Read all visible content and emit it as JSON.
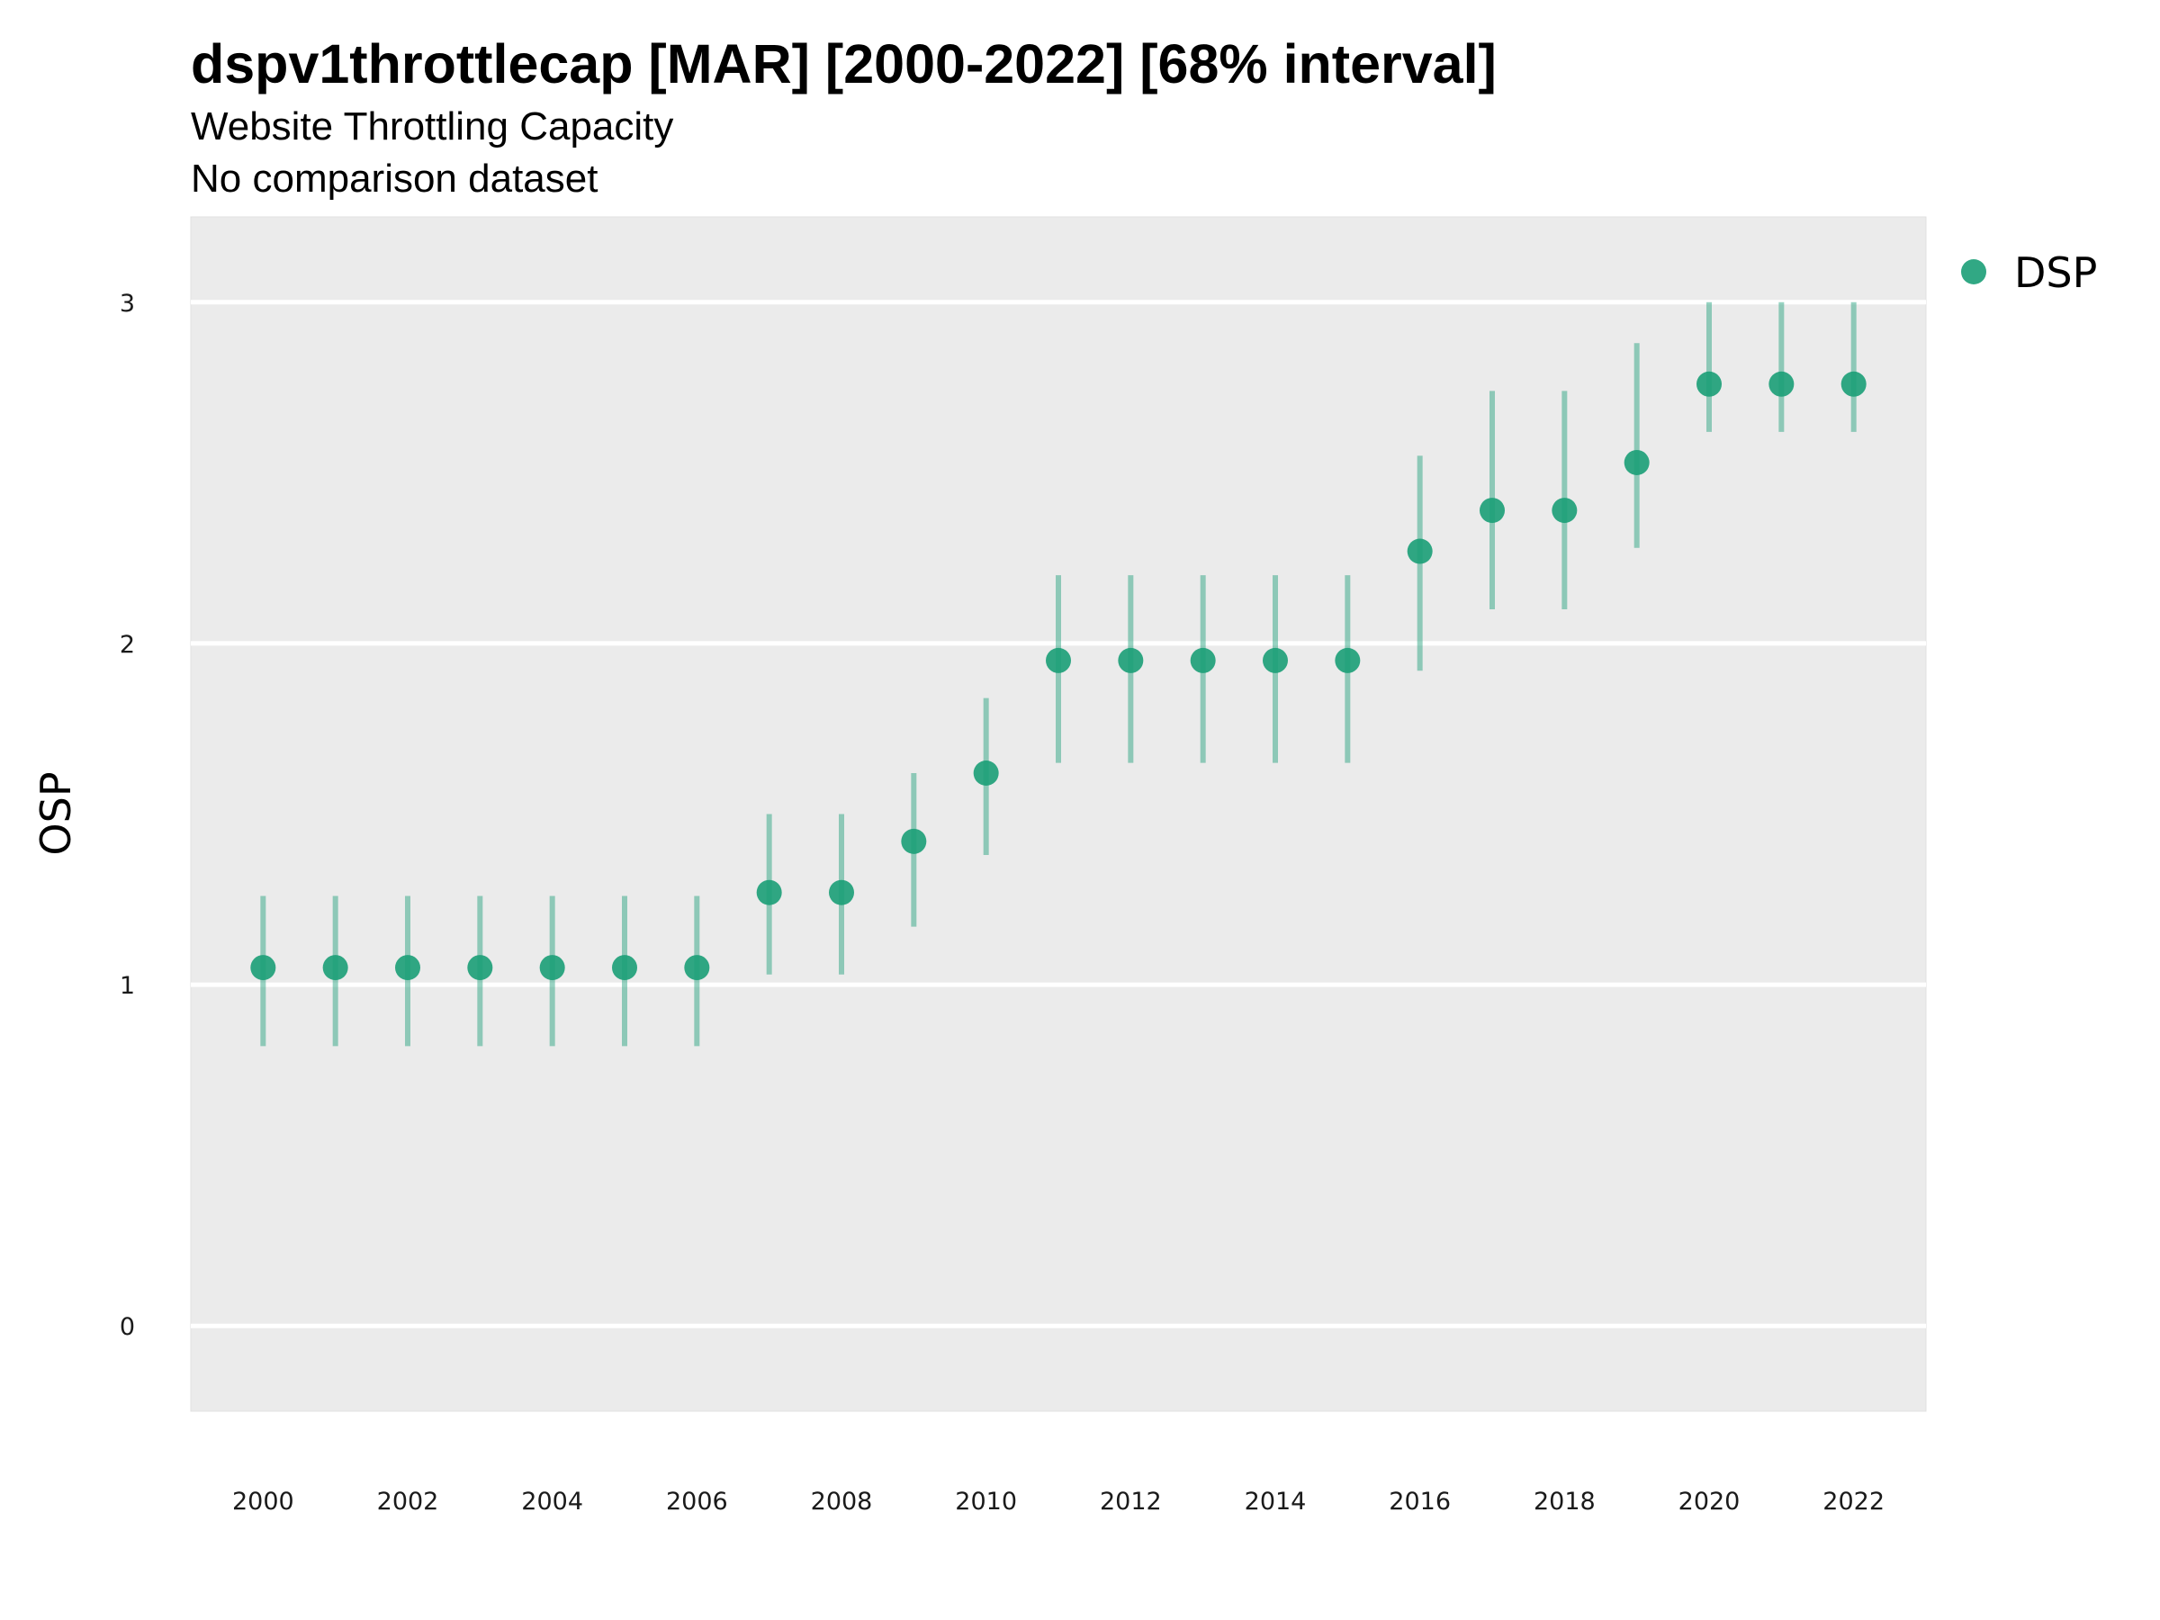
{
  "chart_data": {
    "type": "scatter",
    "title": "dspv1throttlecap [MAR] [2000-2022] [68% interval]",
    "subtitle": "Website Throttling Capacity",
    "caption": "No comparison dataset",
    "ylabel": "OSP",
    "xlabel": "",
    "xlim": [
      1999,
      2023
    ],
    "ylim": [
      -0.25,
      3.25
    ],
    "yticks": [
      0,
      1,
      2,
      3
    ],
    "ytick_labels": [
      "0",
      "1",
      "2",
      "3"
    ],
    "xticks": [
      2000,
      2002,
      2004,
      2006,
      2008,
      2010,
      2012,
      2014,
      2016,
      2018,
      2020,
      2022
    ],
    "xtick_labels": [
      "2000",
      "2002",
      "2004",
      "2006",
      "2008",
      "2010",
      "2012",
      "2014",
      "2016",
      "2018",
      "2020",
      "2022"
    ],
    "grid": true,
    "panel_background": "#ebebeb",
    "grid_color": "#ffffff",
    "legend": {
      "position": "right",
      "entries": [
        "DSP"
      ]
    },
    "series": [
      {
        "name": "DSP",
        "color": "#1b9e77",
        "x": [
          2000,
          2001,
          2002,
          2003,
          2004,
          2005,
          2006,
          2007,
          2008,
          2009,
          2010,
          2011,
          2012,
          2013,
          2014,
          2015,
          2016,
          2017,
          2018,
          2019,
          2020,
          2021,
          2022
        ],
        "y": [
          1.05,
          1.05,
          1.05,
          1.05,
          1.05,
          1.05,
          1.05,
          1.27,
          1.27,
          1.42,
          1.62,
          1.95,
          1.95,
          1.95,
          1.95,
          1.95,
          2.27,
          2.39,
          2.39,
          2.53,
          2.76,
          2.76,
          2.76
        ],
        "lower": [
          0.82,
          0.82,
          0.82,
          0.82,
          0.82,
          0.82,
          0.82,
          1.03,
          1.03,
          1.17,
          1.38,
          1.65,
          1.65,
          1.65,
          1.65,
          1.65,
          1.92,
          2.1,
          2.1,
          2.28,
          2.62,
          2.62,
          2.62
        ],
        "upper": [
          1.26,
          1.26,
          1.26,
          1.26,
          1.26,
          1.26,
          1.26,
          1.5,
          1.5,
          1.62,
          1.84,
          2.2,
          2.2,
          2.2,
          2.2,
          2.2,
          2.55,
          2.74,
          2.74,
          2.88,
          3.0,
          3.0,
          3.0
        ]
      }
    ]
  }
}
